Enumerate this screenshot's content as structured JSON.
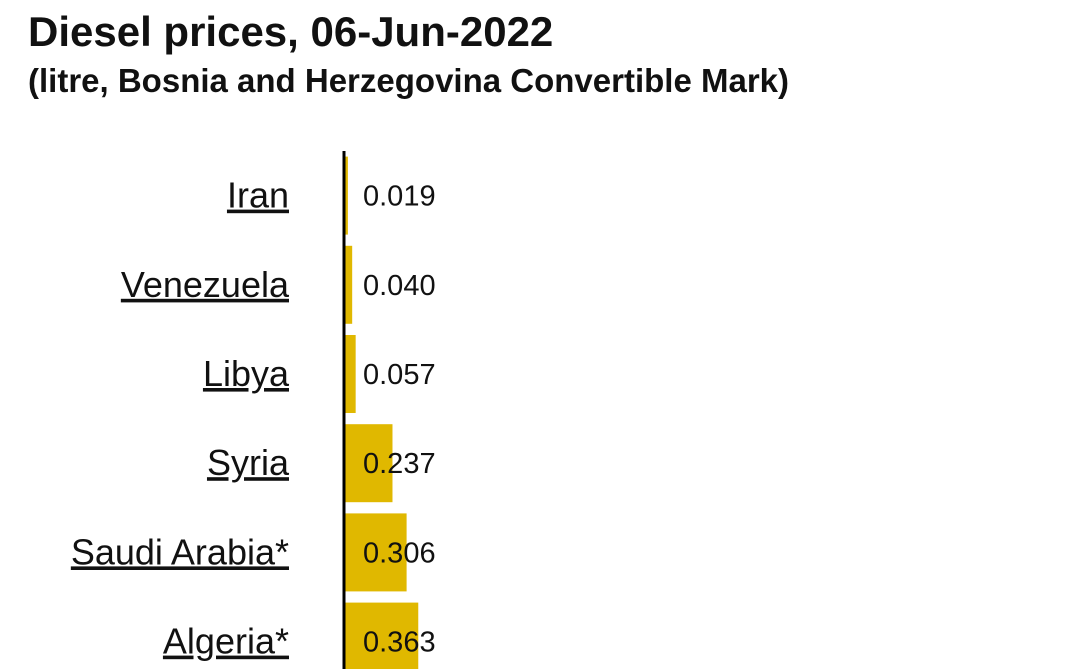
{
  "title": "Diesel prices, 06-Jun-2022",
  "subtitle": "(litre, Bosnia and Herzegovina Convertible Mark)",
  "colors": {
    "bar": "#e0b800",
    "axis": "#000000",
    "text": "#111111"
  },
  "chart_data": {
    "type": "bar",
    "orientation": "horizontal",
    "title": "Diesel prices, 06-Jun-2022",
    "subtitle": "(litre, Bosnia and Herzegovina Convertible Mark)",
    "categories": [
      "Iran",
      "Venezuela",
      "Libya",
      "Syria",
      "Saudi Arabia*",
      "Algeria*"
    ],
    "values": [
      0.019,
      0.04,
      0.057,
      0.237,
      0.306,
      0.363
    ],
    "value_labels": [
      "0.019",
      "0.040",
      "0.057",
      "0.237",
      "0.306",
      "0.363"
    ],
    "xlim": [
      0,
      3.5
    ],
    "grid": false,
    "legend": "none"
  }
}
